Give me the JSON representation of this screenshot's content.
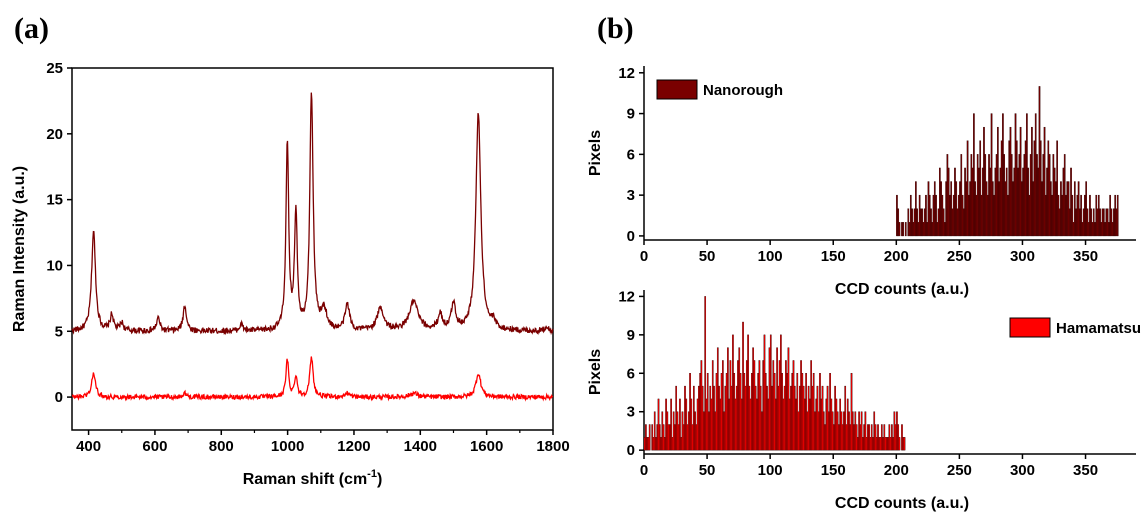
{
  "panels": {
    "a_label": "(a)",
    "b_label": "(b)"
  },
  "colors": {
    "dark_red": "#7a0000",
    "bright_red": "#ff0000",
    "axis": "#000000"
  },
  "chart_data": [
    {
      "id": "a",
      "type": "line",
      "title": "",
      "xlabel": "Raman shift (cm",
      "xlabel_sup": "-1",
      "xlabel_tail": ")",
      "ylabel": "Raman Intensity (a.u.)",
      "xlim": [
        350,
        1800
      ],
      "ylim": [
        -2.5,
        25
      ],
      "xticks": [
        400,
        600,
        800,
        1000,
        1200,
        1400,
        1600,
        1800
      ],
      "yticks": [
        0,
        5,
        10,
        15,
        20,
        25
      ],
      "grid": false,
      "series": [
        {
          "color": "#7a0000",
          "baseline": 5.0,
          "peaks": [
            [
              415,
              12.6,
              7
            ],
            [
              470,
              6.2,
              6
            ],
            [
              500,
              5.6,
              6
            ],
            [
              610,
              6.0,
              6
            ],
            [
              690,
              7.0,
              6
            ],
            [
              860,
              5.5,
              6
            ],
            [
              999,
              19.1,
              5
            ],
            [
              1025,
              13.9,
              5
            ],
            [
              1072,
              23.0,
              6
            ],
            [
              1110,
              6.5,
              10
            ],
            [
              1180,
              7.0,
              8
            ],
            [
              1280,
              6.7,
              12
            ],
            [
              1380,
              7.2,
              16
            ],
            [
              1460,
              6.2,
              8
            ],
            [
              1500,
              7.0,
              8
            ],
            [
              1575,
              21.5,
              9
            ],
            [
              1620,
              5.5,
              8
            ],
            [
              1780,
              5.4,
              6
            ]
          ]
        },
        {
          "color": "#ff0000",
          "baseline": 0.0,
          "peaks": [
            [
              415,
              1.8,
              7
            ],
            [
              690,
              0.3,
              6
            ],
            [
              999,
              2.8,
              5
            ],
            [
              1025,
              1.6,
              5
            ],
            [
              1072,
              3.0,
              6
            ],
            [
              1180,
              0.3,
              8
            ],
            [
              1380,
              0.3,
              14
            ],
            [
              1575,
              1.8,
              9
            ]
          ]
        }
      ]
    },
    {
      "id": "b-top",
      "type": "bar",
      "title": "",
      "xlabel": "CCD counts (a.u.)",
      "ylabel": "Pixels",
      "xlim": [
        0,
        390
      ],
      "ylim": [
        -0.3,
        12.5
      ],
      "xticks": [
        0,
        50,
        100,
        150,
        200,
        250,
        300,
        350
      ],
      "yticks": [
        0,
        3,
        6,
        9,
        12
      ],
      "legend": "Nanorough",
      "legend_position": "top-left",
      "bar_color": "#7a0000",
      "x_start": 200,
      "bin_width": 1,
      "values": [
        3,
        2,
        1,
        0,
        1,
        1,
        0,
        1,
        0,
        2,
        1,
        3,
        2,
        1,
        2,
        4,
        2,
        1,
        3,
        2,
        2,
        1,
        2,
        3,
        1,
        4,
        3,
        2,
        1,
        3,
        4,
        3,
        1,
        2,
        5,
        4,
        3,
        2,
        1,
        4,
        6,
        5,
        3,
        4,
        2,
        3,
        5,
        4,
        2,
        3,
        4,
        6,
        3,
        2,
        5,
        4,
        7,
        3,
        4,
        6,
        5,
        9,
        4,
        3,
        6,
        5,
        7,
        3,
        5,
        8,
        6,
        4,
        3,
        6,
        5,
        9,
        4,
        3,
        5,
        6,
        8,
        4,
        5,
        7,
        9,
        6,
        4,
        5,
        3,
        7,
        8,
        6,
        4,
        5,
        9,
        7,
        5,
        6,
        8,
        4,
        5,
        6,
        7,
        9,
        5,
        3,
        6,
        8,
        4,
        7,
        9,
        6,
        5,
        11,
        7,
        4,
        6,
        8,
        3,
        5,
        7,
        6,
        4,
        3,
        6,
        5,
        4,
        7,
        3,
        2,
        4,
        3,
        5,
        6,
        3,
        4,
        4,
        2,
        5,
        3,
        1,
        4,
        2,
        3,
        4,
        2,
        3,
        1,
        2,
        3,
        4,
        2,
        1,
        3,
        2,
        1,
        2,
        1,
        3,
        2,
        3,
        2,
        1,
        2,
        2,
        1,
        2,
        2,
        1,
        3,
        2,
        1,
        2,
        3,
        2,
        3
      ]
    },
    {
      "id": "b-bottom",
      "type": "bar",
      "title": "",
      "xlabel": "CCD counts (a.u.)",
      "ylabel": "Pixels",
      "xlim": [
        0,
        390
      ],
      "ylim": [
        -0.3,
        12.5
      ],
      "xticks": [
        0,
        50,
        100,
        150,
        200,
        250,
        300,
        350
      ],
      "yticks": [
        0,
        3,
        6,
        9,
        12
      ],
      "legend": "Hamamatsu",
      "legend_position": "top-right",
      "bar_color": "#ff0000",
      "x_start": 0,
      "bin_width": 1,
      "values": [
        1,
        2,
        1,
        1,
        2,
        0,
        2,
        1,
        3,
        1,
        2,
        4,
        2,
        1,
        3,
        2,
        1,
        4,
        3,
        2,
        2,
        4,
        1,
        3,
        2,
        5,
        3,
        2,
        4,
        1,
        3,
        2,
        5,
        4,
        2,
        3,
        6,
        4,
        2,
        5,
        3,
        2,
        4,
        5,
        6,
        7,
        5,
        3,
        12,
        4,
        6,
        3,
        5,
        4,
        7,
        5,
        3,
        6,
        8,
        5,
        4,
        6,
        7,
        3,
        5,
        6,
        8,
        4,
        7,
        5,
        9,
        6,
        4,
        5,
        7,
        8,
        6,
        4,
        10,
        6,
        5,
        7,
        9,
        5,
        4,
        6,
        8,
        7,
        5,
        4,
        6,
        7,
        5,
        3,
        7,
        9,
        6,
        5,
        4,
        8,
        9,
        5,
        7,
        6,
        4,
        8,
        5,
        7,
        9,
        6,
        4,
        5,
        7,
        6,
        8,
        4,
        5,
        6,
        7,
        5,
        4,
        6,
        3,
        5,
        7,
        6,
        5,
        4,
        6,
        3,
        5,
        4,
        7,
        5,
        6,
        3,
        4,
        5,
        3,
        6,
        4,
        5,
        3,
        2,
        4,
        5,
        3,
        6,
        4,
        3,
        2,
        5,
        4,
        3,
        2,
        4,
        3,
        2,
        3,
        5,
        2,
        4,
        3,
        2,
        6,
        3,
        2,
        3,
        2,
        1,
        3,
        2,
        3,
        1,
        2,
        3,
        1,
        2,
        2,
        1,
        2,
        1,
        3,
        2,
        1,
        2,
        1,
        1,
        2,
        1,
        2,
        1,
        1,
        1,
        2,
        1,
        2,
        1,
        3,
        2,
        3,
        2,
        1,
        0,
        2,
        1,
        1
      ]
    }
  ]
}
